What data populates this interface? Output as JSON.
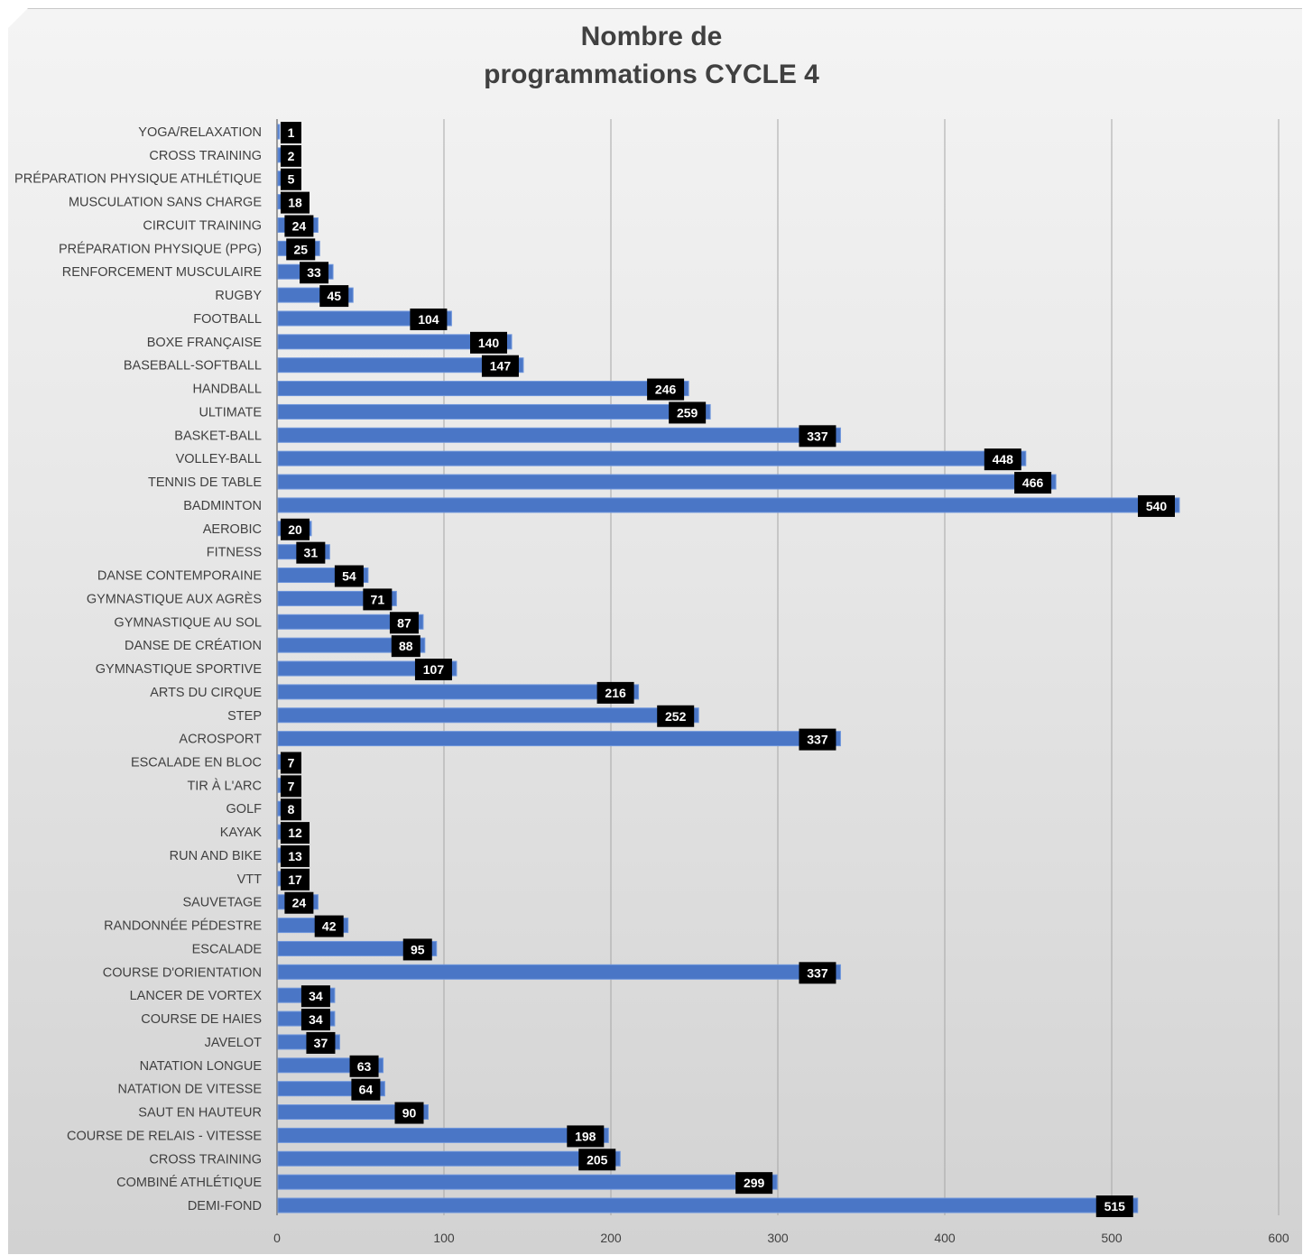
{
  "chart_data": {
    "type": "bar",
    "orientation": "horizontal",
    "title_lines": [
      "Nombre de",
      "programmations CYCLE 4"
    ],
    "xlim": [
      0,
      600
    ],
    "xticks": [
      0,
      100,
      200,
      300,
      400,
      500,
      600
    ],
    "grid": true,
    "colors": {
      "bar": "#4a76c6",
      "bar_edge": "#6f96dc",
      "label_bg": "#000000",
      "label_text": "#ffffff",
      "grid": "#a6a6a6"
    },
    "categories": [
      "YOGA/RELAXATION",
      "CROSS TRAINING",
      "PRÉPARATION PHYSIQUE ATHLÉTIQUE",
      "MUSCULATION SANS CHARGE",
      "CIRCUIT TRAINING",
      "PRÉPARATION PHYSIQUE (PPG)",
      "RENFORCEMENT MUSCULAIRE",
      "RUGBY",
      "FOOTBALL",
      "BOXE FRANÇAISE",
      "BASEBALL-SOFTBALL",
      "HANDBALL",
      "ULTIMATE",
      "BASKET-BALL",
      "VOLLEY-BALL",
      "TENNIS DE TABLE",
      "BADMINTON",
      "AEROBIC",
      "FITNESS",
      "DANSE CONTEMPORAINE",
      "GYMNASTIQUE AUX AGRÈS",
      "GYMNASTIQUE AU SOL",
      "DANSE DE CRÉATION",
      "GYMNASTIQUE SPORTIVE",
      "ARTS DU CIRQUE",
      "STEP",
      "ACROSPORT",
      "ESCALADE EN BLOC",
      "TIR À L'ARC",
      "GOLF",
      "KAYAK",
      "RUN AND BIKE",
      "VTT",
      "SAUVETAGE",
      "RANDONNÉE PÉDESTRE",
      "ESCALADE",
      "COURSE D'ORIENTATION",
      "LANCER DE VORTEX",
      "COURSE DE HAIES",
      "JAVELOT",
      "NATATION LONGUE",
      "NATATION DE VITESSE",
      "SAUT EN HAUTEUR",
      "COURSE DE RELAIS - VITESSE",
      "CROSS TRAINING",
      "COMBINÉ ATHLÉTIQUE",
      "DEMI-FOND"
    ],
    "values": [
      1,
      2,
      5,
      18,
      24,
      25,
      33,
      45,
      104,
      140,
      147,
      246,
      259,
      337,
      448,
      466,
      540,
      20,
      31,
      54,
      71,
      87,
      88,
      107,
      216,
      252,
      337,
      7,
      7,
      8,
      12,
      13,
      17,
      24,
      42,
      95,
      337,
      34,
      34,
      37,
      63,
      64,
      90,
      198,
      205,
      299,
      515
    ]
  }
}
